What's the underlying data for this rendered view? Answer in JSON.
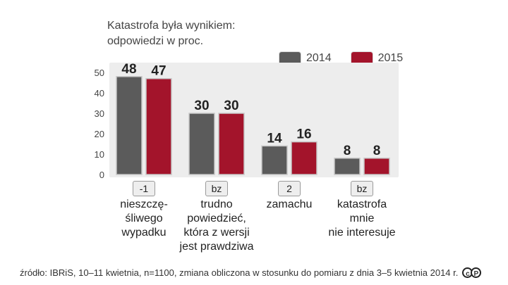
{
  "title_lines": [
    "Katastrofa była wynikiem:",
    "odpowiedzi w proc."
  ],
  "legend": [
    {
      "label": "2014",
      "color": "#5b5b5b"
    },
    {
      "label": "2015",
      "color": "#a3142b"
    }
  ],
  "footer": "źródło: IBRiS, 10–11 kwietnia, n=1100, zmiana obliczona w stosunku do pomiaru z dnia 3–5 kwietnia 2014 r.",
  "chart_data": {
    "type": "bar",
    "categories": [
      [
        "nieszczę-",
        "śliwego",
        "wypadku"
      ],
      [
        "trudno",
        "powiedzieć,",
        "która z wersji",
        "jest prawdziwa"
      ],
      [
        "zamachu"
      ],
      [
        "katastrofa",
        "mnie",
        "nie interesuje"
      ]
    ],
    "changes": [
      "-1",
      "bz",
      "2",
      "bz"
    ],
    "series": [
      {
        "name": "2014",
        "values": [
          48,
          30,
          14,
          8
        ],
        "color": "#5b5b5b"
      },
      {
        "name": "2015",
        "values": [
          47,
          30,
          16,
          8
        ],
        "color": "#a3142b"
      }
    ],
    "ylim": [
      0,
      50
    ],
    "yticks": [
      0,
      10,
      20,
      30,
      40,
      50
    ],
    "plot_background": "#ededed"
  }
}
